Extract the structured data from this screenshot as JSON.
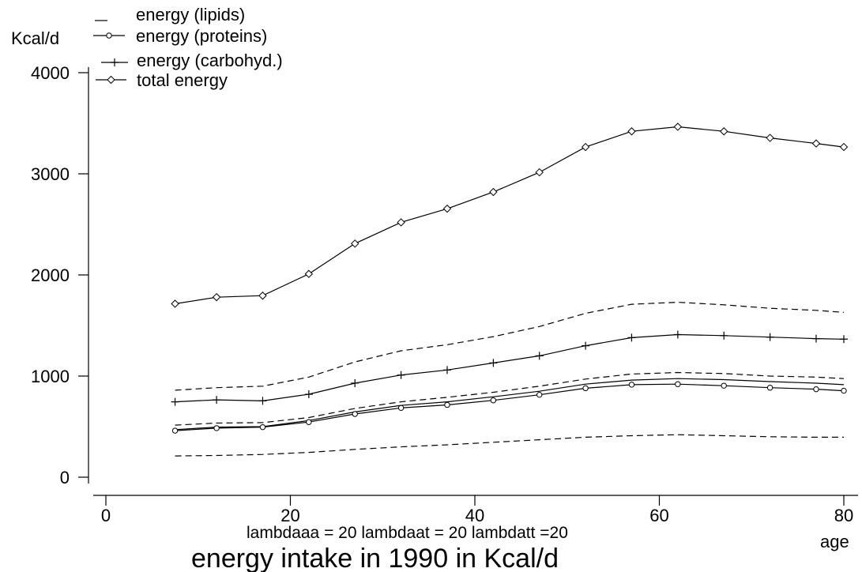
{
  "chart_data": {
    "type": "line",
    "title": "energy intake in 1990 in Kcal/d",
    "subtitle": "lambdaaa = 20 lambdaat = 20 lambdatt =20",
    "ylabel": "Kcal/d",
    "xlabel": "age",
    "xlim": [
      0,
      80
    ],
    "ylim": [
      0,
      4000
    ],
    "x_ticks": [
      0,
      20,
      40,
      60,
      80
    ],
    "y_ticks": [
      0,
      1000,
      2000,
      3000,
      4000
    ],
    "grid": false,
    "legend_position": "top-left",
    "x": [
      7.5,
      12,
      17,
      22,
      27,
      32,
      37,
      42,
      47,
      52,
      57,
      62,
      67,
      72,
      77,
      80
    ],
    "series": [
      {
        "name": "energy (lipids)",
        "marker": "none",
        "style": "dashed",
        "values": [
          860,
          885,
          900,
          990,
          1140,
          1250,
          1310,
          1390,
          1490,
          1620,
          1710,
          1730,
          1705,
          1670,
          1650,
          1630
        ]
      },
      {
        "name": "energy (proteins)",
        "marker": "circle",
        "style": "solid",
        "values": [
          460,
          485,
          495,
          545,
          625,
          685,
          715,
          760,
          815,
          880,
          915,
          920,
          905,
          885,
          870,
          855
        ]
      },
      {
        "name": "energy (carbohyd.)",
        "marker": "plus",
        "style": "solid",
        "values": [
          745,
          765,
          755,
          820,
          930,
          1010,
          1060,
          1130,
          1200,
          1300,
          1380,
          1410,
          1400,
          1385,
          1370,
          1365
        ]
      },
      {
        "name": "total energy",
        "marker": "diamond",
        "style": "solid",
        "values": [
          1715,
          1780,
          1795,
          2010,
          2310,
          2520,
          2655,
          2820,
          3015,
          3265,
          3420,
          3465,
          3420,
          3355,
          3300,
          3265
        ]
      }
    ],
    "extra_lines": [
      {
        "style": "dashed",
        "values": [
          210,
          215,
          225,
          245,
          275,
          300,
          320,
          345,
          370,
          395,
          410,
          420,
          410,
          400,
          395,
          395
        ]
      },
      {
        "style": "dashed",
        "values": [
          515,
          535,
          540,
          590,
          680,
          745,
          790,
          840,
          900,
          970,
          1020,
          1035,
          1025,
          1000,
          990,
          975
        ]
      },
      {
        "style": "solid",
        "values": [
          470,
          495,
          500,
          560,
          645,
          710,
          745,
          795,
          850,
          920,
          960,
          975,
          965,
          945,
          930,
          915
        ]
      }
    ]
  }
}
